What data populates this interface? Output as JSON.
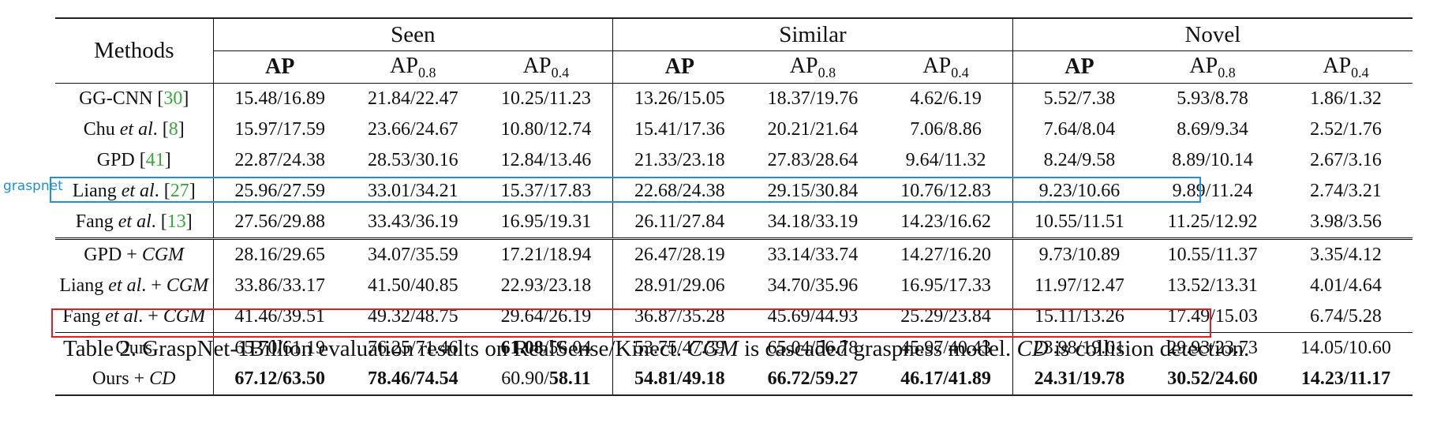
{
  "table": {
    "methods_header": "Methods",
    "groups": [
      "Seen",
      "Similar",
      "Novel"
    ],
    "subheaders": [
      {
        "base": "AP",
        "sub": "",
        "bold": true
      },
      {
        "base": "AP",
        "sub": "0.8",
        "bold": false
      },
      {
        "base": "AP",
        "sub": "0.4",
        "bold": false
      }
    ],
    "sections": [
      {
        "rows": [
          {
            "method": [
              {
                "t": "GG-CNN "
              },
              {
                "t": "[",
                "style": ""
              },
              {
                "t": "30",
                "style": "cite"
              },
              {
                "t": "]"
              }
            ],
            "values": [
              "15.48/16.89",
              "21.84/22.47",
              "10.25/11.23",
              "13.26/15.05",
              "18.37/19.76",
              "4.62/6.19",
              "5.52/7.38",
              "5.93/8.78",
              "1.86/1.32"
            ]
          },
          {
            "method": [
              {
                "t": "Chu "
              },
              {
                "t": "et al",
                "style": "it"
              },
              {
                "t": ". ["
              },
              {
                "t": "8",
                "style": "cite"
              },
              {
                "t": "]"
              }
            ],
            "values": [
              "15.97/17.59",
              "23.66/24.67",
              "10.80/12.74",
              "15.41/17.36",
              "20.21/21.64",
              "7.06/8.86",
              "7.64/8.04",
              "8.69/9.34",
              "2.52/1.76"
            ]
          },
          {
            "method": [
              {
                "t": "GPD "
              },
              {
                "t": "["
              },
              {
                "t": "41",
                "style": "cite"
              },
              {
                "t": "]"
              }
            ],
            "values": [
              "22.87/24.38",
              "28.53/30.16",
              "12.84/13.46",
              "21.33/23.18",
              "27.83/28.64",
              "9.64/11.32",
              "8.24/9.58",
              "8.89/10.14",
              "2.67/3.16"
            ]
          },
          {
            "method": [
              {
                "t": "Liang "
              },
              {
                "t": "et al",
                "style": "it"
              },
              {
                "t": ". ["
              },
              {
                "t": "27",
                "style": "cite"
              },
              {
                "t": "]"
              }
            ],
            "values": [
              "25.96/27.59",
              "33.01/34.21",
              "15.37/17.83",
              "22.68/24.38",
              "29.15/30.84",
              "10.76/12.83",
              "9.23/10.66",
              "9.89/11.24",
              "2.74/3.21"
            ]
          },
          {
            "method": [
              {
                "t": "Fang "
              },
              {
                "t": "et al",
                "style": "it"
              },
              {
                "t": ". ["
              },
              {
                "t": "13",
                "style": "cite"
              },
              {
                "t": "]"
              }
            ],
            "values": [
              "27.56/29.88",
              "33.43/36.19",
              "16.95/19.31",
              "26.11/27.84",
              "34.18/33.19",
              "14.23/16.62",
              "10.55/11.51",
              "11.25/12.92",
              "3.98/3.56"
            ]
          }
        ]
      },
      {
        "rows": [
          {
            "method": [
              {
                "t": "GPD + "
              },
              {
                "t": "CGM",
                "style": "it"
              }
            ],
            "values": [
              "28.16/29.65",
              "34.07/35.59",
              "17.21/18.94",
              "26.47/28.19",
              "33.14/33.74",
              "14.27/16.20",
              "9.73/10.89",
              "10.55/11.37",
              "3.35/4.12"
            ]
          },
          {
            "method": [
              {
                "t": "Liang "
              },
              {
                "t": "et al",
                "style": "it"
              },
              {
                "t": ". + "
              },
              {
                "t": "CGM",
                "style": "it"
              }
            ],
            "values": [
              "33.86/33.17",
              "41.50/40.85",
              "22.93/23.18",
              "28.91/29.06",
              "34.70/35.96",
              "16.95/17.33",
              "11.97/12.47",
              "13.52/13.31",
              "4.01/4.64"
            ]
          },
          {
            "method": [
              {
                "t": "Fang "
              },
              {
                "t": "et al",
                "style": "it"
              },
              {
                "t": ". + "
              },
              {
                "t": "CGM",
                "style": "it"
              }
            ],
            "values": [
              "41.46/39.51",
              "49.32/48.75",
              "29.64/26.19",
              "36.87/35.28",
              "45.69/44.93",
              "25.29/23.84",
              "15.11/13.26",
              "17.49/15.03",
              "6.74/5.28"
            ]
          }
        ]
      },
      {
        "rows": [
          {
            "method": [
              {
                "t": "Ours"
              }
            ],
            "values": [
              "65.70/61.19",
              "76.25/71.46",
              [
                {
                  "t": "61.08",
                  "style": "b"
                },
                {
                  "t": "/56.04"
                }
              ],
              "53.75/47.39",
              "65.04/56.78",
              "45.97/40.43",
              "23.98/19.01",
              "29.93/23.73",
              "14.05/10.60"
            ]
          },
          {
            "method": [
              {
                "t": "Ours + "
              },
              {
                "t": "CD",
                "style": "it"
              }
            ],
            "values": [
              [
                {
                  "t": "67.12/63.50",
                  "style": "b"
                }
              ],
              [
                {
                  "t": "78.46/74.54",
                  "style": "b"
                }
              ],
              [
                {
                  "t": "60.90/"
                },
                {
                  "t": "58.11",
                  "style": "b"
                }
              ],
              [
                {
                  "t": "54.81/49.18",
                  "style": "b"
                }
              ],
              [
                {
                  "t": "66.72/59.27",
                  "style": "b"
                }
              ],
              [
                {
                  "t": "46.17/41.89",
                  "style": "b"
                }
              ],
              [
                {
                  "t": "24.31/19.78",
                  "style": "b"
                }
              ],
              [
                {
                  "t": "30.52/24.60",
                  "style": "b"
                }
              ],
              [
                {
                  "t": "14.23/11.17",
                  "style": "b"
                }
              ]
            ]
          }
        ]
      }
    ]
  },
  "caption": [
    {
      "t": "Table 2. GraspNet-1Billion evaluation results on RealSense/Kinect. "
    },
    {
      "t": "CGM",
      "style": "it"
    },
    {
      "t": " is cascaded graspness model. "
    },
    {
      "t": "CD",
      "style": "it"
    },
    {
      "t": " is collision detection."
    }
  ],
  "annotations": {
    "graspnet_label": "graspnet",
    "blue_color": "#1e90e0",
    "red_color": "#e02020"
  }
}
